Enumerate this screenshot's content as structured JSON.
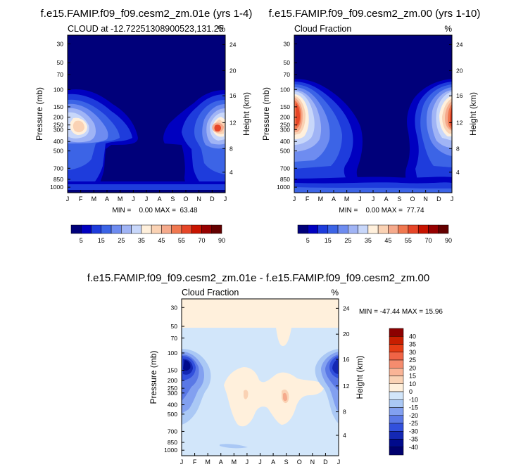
{
  "panels": [
    {
      "id": "p1",
      "title": "f.e15.FAMIP.f09_f09.cesm2_zm.01e (yrs 1-4)",
      "left_label": "CLOUD at -12.72251308900523,131.25",
      "right_label": "%",
      "ylabel": "Pressure (mb)",
      "y2label": "Height (km)",
      "minmax": "MIN =    0.00 MAX =  63.48"
    },
    {
      "id": "p2",
      "title": "f.e15.FAMIP.f09_f09.cesm2_zm.00 (yrs 1-10)",
      "left_label": "Cloud Fraction",
      "right_label": "%",
      "ylabel": "Pressure (mb)",
      "y2label": "Height (km)",
      "minmax": "MIN =    0.00 MAX =  77.74"
    },
    {
      "id": "p3",
      "title": "f.e15.FAMIP.f09_f09.cesm2_zm.01e - f.e15.FAMIP.f09_f09.cesm2_zm.00",
      "left_label": "Cloud Fraction",
      "right_label": "%",
      "ylabel": "Pressure (mb)",
      "y2label": "Height (km)",
      "minmax": "MIN = -47.44 MAX =  15.96"
    }
  ],
  "chart_data": [
    {
      "type": "heatmap",
      "title": "f.e15.FAMIP.f09_f09.cesm2_zm.01e (yrs 1-4)",
      "x_ticks": [
        "J",
        "F",
        "M",
        "A",
        "M",
        "J",
        "J",
        "A",
        "S",
        "O",
        "N",
        "D",
        "J"
      ],
      "y_ticks": [
        "30",
        "50",
        "70",
        "100",
        "150",
        "200",
        "250",
        "300",
        "400",
        "500",
        "700",
        "850",
        "1000"
      ],
      "y2_ticks": [
        "24",
        "20",
        "16",
        "12",
        "8",
        "4"
      ],
      "min": 0.0,
      "max": 63.48,
      "colorbar": {
        "labels": [
          "5",
          "15",
          "25",
          "35",
          "45",
          "55",
          "70",
          "90"
        ],
        "colors": [
          "#00007a",
          "#0000c0",
          "#1e3cdc",
          "#3c64e6",
          "#6e8cf0",
          "#a0b4f5",
          "#c8d7fa",
          "#fff0dc",
          "#fad2b4",
          "#f5aa8c",
          "#f07850",
          "#e64628",
          "#c81400",
          "#960000",
          "#640000"
        ]
      }
    },
    {
      "type": "heatmap",
      "title": "f.e15.FAMIP.f09_f09.cesm2_zm.00 (yrs 1-10)",
      "x_ticks": [
        "J",
        "F",
        "M",
        "A",
        "M",
        "J",
        "J",
        "A",
        "S",
        "O",
        "N",
        "D",
        "J"
      ],
      "y_ticks": [
        "30",
        "50",
        "70",
        "100",
        "150",
        "200",
        "250",
        "300",
        "400",
        "500",
        "700",
        "850",
        "1000"
      ],
      "y2_ticks": [
        "24",
        "20",
        "16",
        "12",
        "8",
        "4"
      ],
      "min": 0.0,
      "max": 77.74,
      "colorbar": {
        "labels": [
          "5",
          "15",
          "25",
          "35",
          "45",
          "55",
          "70",
          "90"
        ],
        "colors": [
          "#00007a",
          "#0000c0",
          "#1e3cdc",
          "#3c64e6",
          "#6e8cf0",
          "#a0b4f5",
          "#c8d7fa",
          "#fff0dc",
          "#fad2b4",
          "#f5aa8c",
          "#f07850",
          "#e64628",
          "#c81400",
          "#960000",
          "#640000"
        ]
      }
    },
    {
      "type": "heatmap",
      "title": "f.e15.FAMIP.f09_f09.cesm2_zm.01e - f.e15.FAMIP.f09_f09.cesm2_zm.00",
      "x_ticks": [
        "J",
        "F",
        "M",
        "A",
        "M",
        "J",
        "J",
        "A",
        "S",
        "O",
        "N",
        "D",
        "J"
      ],
      "y_ticks": [
        "30",
        "50",
        "70",
        "100",
        "150",
        "200",
        "250",
        "300",
        "400",
        "500",
        "700",
        "850",
        "1000"
      ],
      "y2_ticks": [
        "24",
        "20",
        "16",
        "12",
        "8",
        "4"
      ],
      "min": -47.44,
      "max": 15.96,
      "colorbar": {
        "labels": [
          "40",
          "35",
          "30",
          "25",
          "20",
          "15",
          "10",
          "0",
          "-10",
          "-15",
          "-20",
          "-25",
          "-30",
          "-35",
          "-40"
        ],
        "colors": [
          "#8c0000",
          "#c81e00",
          "#e63c14",
          "#f06446",
          "#f58c6e",
          "#fab496",
          "#fad2b4",
          "#fff0dc",
          "#d2e6fa",
          "#aac8f5",
          "#82a0f0",
          "#5a78e6",
          "#3250dc",
          "#1428b4",
          "#000a8c",
          "#00006e"
        ]
      }
    }
  ]
}
